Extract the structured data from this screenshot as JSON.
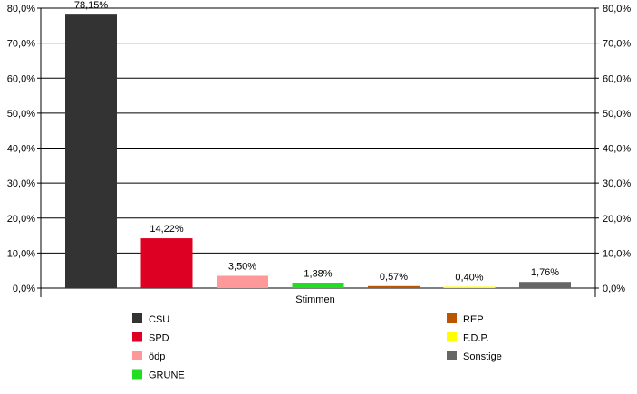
{
  "chart_data": {
    "type": "bar",
    "title": "",
    "xlabel": "Stimmen",
    "ylabel": "",
    "ylim": [
      0,
      80
    ],
    "y_ticks": [
      0,
      10,
      20,
      30,
      40,
      50,
      60,
      70,
      80
    ],
    "y_tick_labels": [
      "0,0%",
      "10,0%",
      "20,0%",
      "30,0%",
      "40,0%",
      "50,0%",
      "60,0%",
      "70,0%",
      "80,0%"
    ],
    "grid": true,
    "secondary_y_axis": true,
    "legend_placement": "bottom",
    "categories": [
      "CSU",
      "SPD",
      "ödp",
      "GRÜNE",
      "REP",
      "F.D.P.",
      "Sonstige"
    ],
    "values": [
      78.15,
      14.22,
      3.5,
      1.38,
      0.57,
      0.4,
      1.76
    ],
    "data_labels": [
      "78,15%",
      "14,22%",
      "3,50%",
      "1,38%",
      "0,57%",
      "0,40%",
      "1,76%"
    ],
    "colors": [
      "#333333",
      "#dd0022",
      "#ff9999",
      "#22dd22",
      "#bb5500",
      "#ffff00",
      "#666666"
    ],
    "legend": [
      {
        "name": "CSU",
        "color": "#333333"
      },
      {
        "name": "SPD",
        "color": "#dd0022"
      },
      {
        "name": "ödp",
        "color": "#ff9999"
      },
      {
        "name": "GRÜNE",
        "color": "#22dd22"
      },
      {
        "name": "REP",
        "color": "#bb5500"
      },
      {
        "name": "F.D.P.",
        "color": "#ffff00"
      },
      {
        "name": "Sonstige",
        "color": "#666666"
      }
    ]
  }
}
